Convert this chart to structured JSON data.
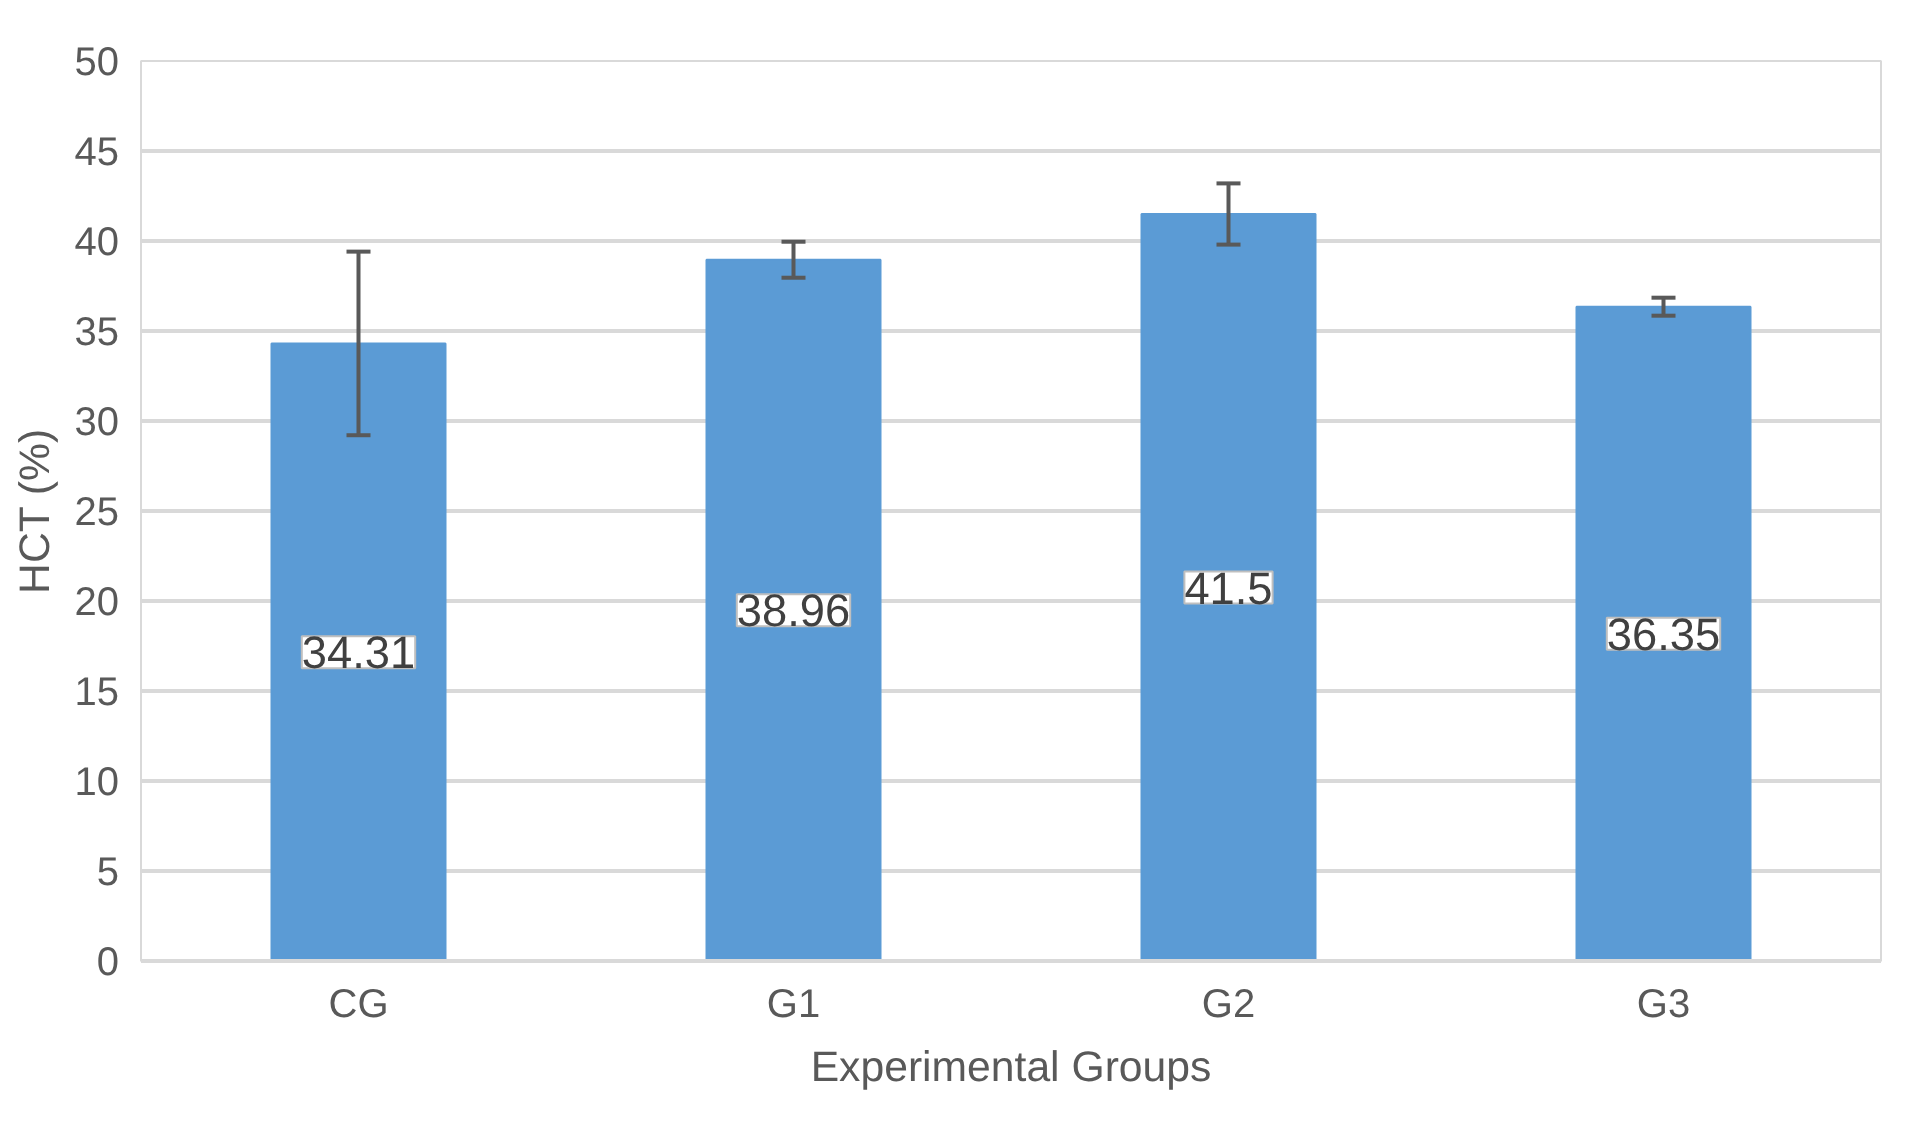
{
  "chart_data": {
    "type": "bar",
    "xlabel": "Experimental Groups",
    "ylabel": "HCT (%)",
    "categories": [
      "CG",
      "G1",
      "G2",
      "G3"
    ],
    "values": [
      34.31,
      38.96,
      41.5,
      36.35
    ],
    "errors": [
      5.1,
      1.0,
      1.7,
      0.5
    ],
    "color": "#5b9bd5",
    "data_labels": true,
    "ylim": [
      0,
      50
    ],
    "yticks": [
      0,
      5,
      10,
      15,
      20,
      25,
      30,
      35,
      40,
      45,
      50
    ],
    "grid": "y"
  }
}
